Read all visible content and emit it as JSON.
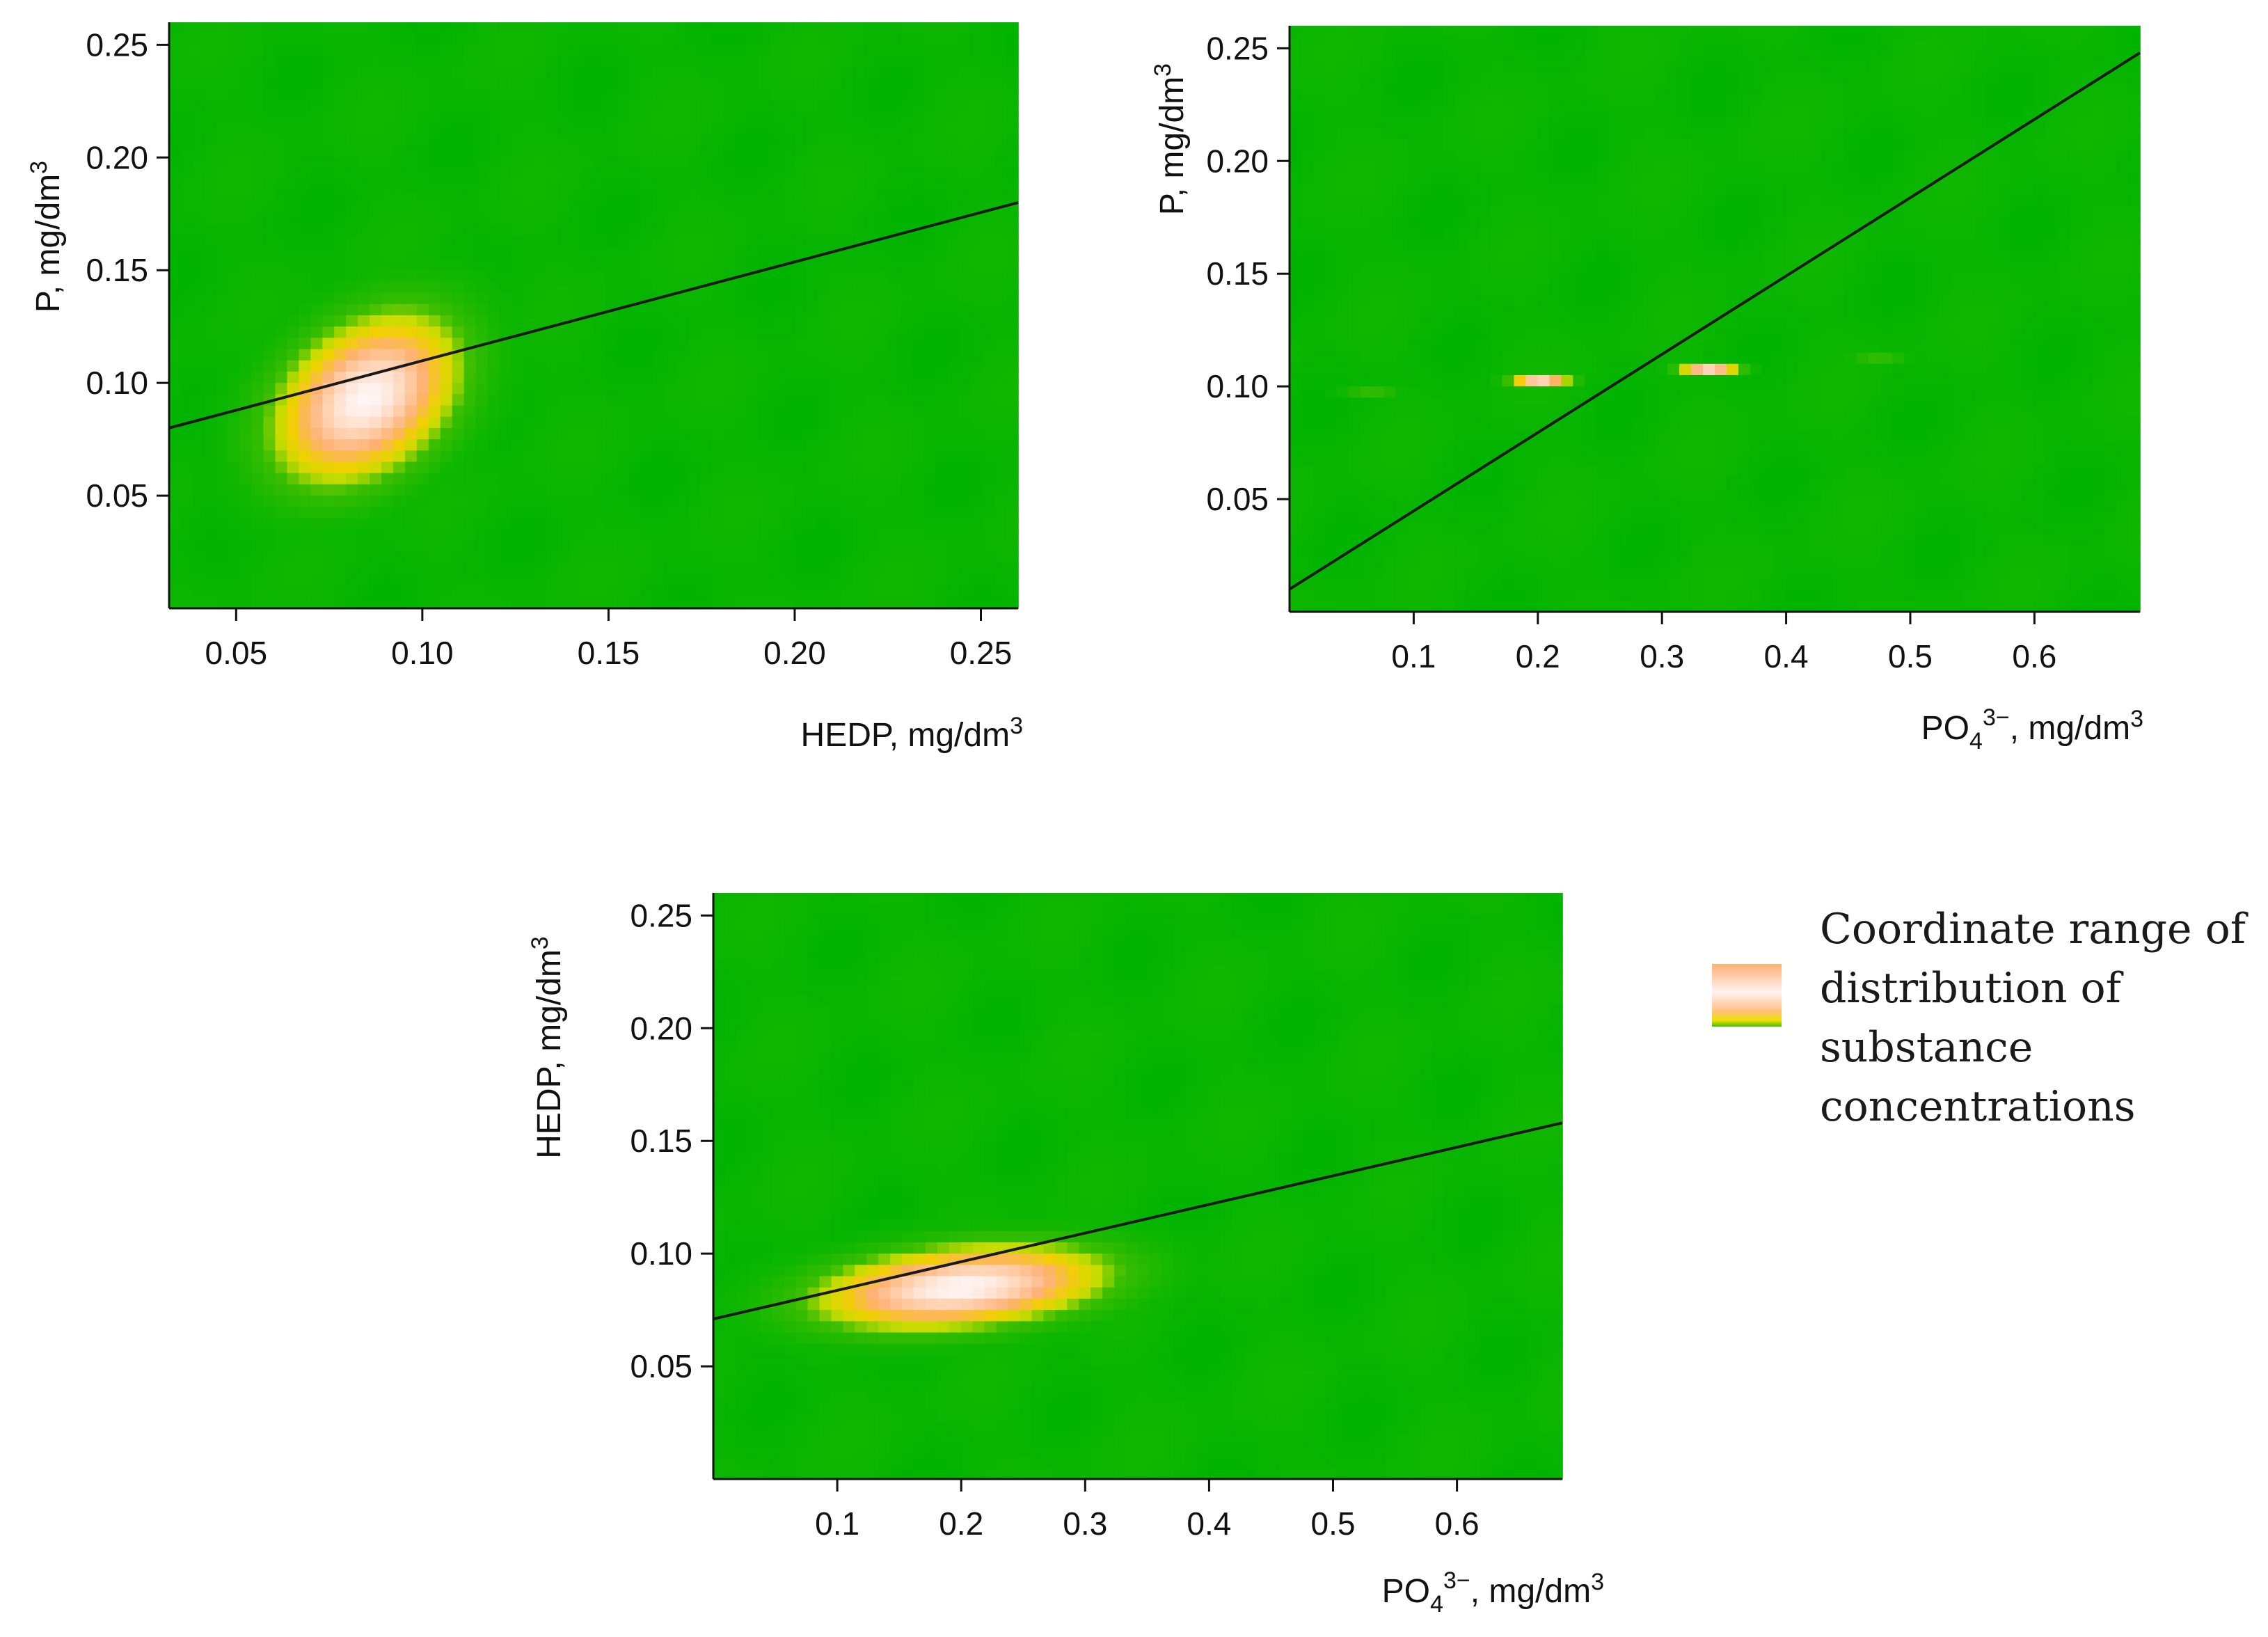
{
  "chart_data": [
    {
      "type": "heatmap",
      "id": "top-left",
      "title": "",
      "xlabel": "HEDP, mg/dm",
      "xlabel_sup": "3",
      "ylabel": "P, mg/dm",
      "ylabel_sup": "3",
      "xlim": [
        0.032,
        0.26
      ],
      "ylim": [
        0.0,
        0.26
      ],
      "xticks": [
        0.05,
        0.1,
        0.15,
        0.2,
        0.25
      ],
      "xtick_labels": [
        "0.05",
        "0.10",
        "0.15",
        "0.20",
        "0.25"
      ],
      "yticks": [
        0.05,
        0.1,
        0.15,
        0.2,
        0.25
      ],
      "ytick_labels": [
        "0.05",
        "0.10",
        "0.15",
        "0.20",
        "0.25"
      ],
      "grid": false,
      "density_center": [
        0.085,
        0.093
      ],
      "density_spread": [
        0.016,
        0.024
      ],
      "density_corr": 0.35,
      "regression_line": {
        "x": [
          0.032,
          0.26
        ],
        "y": [
          0.08,
          0.18
        ]
      }
    },
    {
      "type": "heatmap",
      "id": "top-right",
      "title": "",
      "xlabel": "PO",
      "xlabel_sub": "4",
      "xlabel_sup": "3−",
      "xlabel_unit": ", mg/dm",
      "xlabel_unit_sup": "3",
      "ylabel": "P, mg/dm",
      "ylabel_sup": "3",
      "xlim": [
        0.0,
        0.685
      ],
      "ylim": [
        0.0,
        0.26
      ],
      "xticks": [
        0.1,
        0.2,
        0.3,
        0.4,
        0.5,
        0.6
      ],
      "xtick_labels": [
        "0.1",
        "0.2",
        "0.3",
        "0.4",
        "0.5",
        "0.6"
      ],
      "yticks": [
        0.05,
        0.1,
        0.15,
        0.2,
        0.25
      ],
      "ytick_labels": [
        "0.05",
        "0.10",
        "0.15",
        "0.20",
        "0.25"
      ],
      "grid": false,
      "density_center": [
        0.27,
        0.105
      ],
      "density_spread": [
        0.11,
        0.004
      ],
      "density_corr": 0.99,
      "regression_line": {
        "x": [
          0.0,
          0.685
        ],
        "y": [
          0.01,
          0.248
        ]
      }
    },
    {
      "type": "heatmap",
      "id": "bottom",
      "title": "",
      "xlabel": "PO",
      "xlabel_sub": "4",
      "xlabel_sup": "3−",
      "xlabel_unit": ", mg/dm",
      "xlabel_unit_sup": "3",
      "ylabel": "HEDP, mg/dm",
      "ylabel_sup": "3",
      "xlim": [
        0.0,
        0.685
      ],
      "ylim": [
        0.0,
        0.26
      ],
      "xticks": [
        0.1,
        0.2,
        0.3,
        0.4,
        0.5,
        0.6
      ],
      "xtick_labels": [
        "0.1",
        "0.2",
        "0.3",
        "0.4",
        "0.5",
        "0.6"
      ],
      "yticks": [
        0.05,
        0.1,
        0.15,
        0.2,
        0.25
      ],
      "ytick_labels": [
        "0.05",
        "0.10",
        "0.15",
        "0.20",
        "0.25"
      ],
      "grid": false,
      "density_center": [
        0.2,
        0.085
      ],
      "density_spread": [
        0.075,
        0.012
      ],
      "density_corr": 0.3,
      "regression_line": {
        "x": [
          0.0,
          0.685
        ],
        "y": [
          0.071,
          0.158
        ]
      }
    }
  ],
  "legend": {
    "placement": "right of bottom chart",
    "lines": [
      "Coordinate range of",
      "distribution of",
      "substance",
      "concentrations"
    ]
  },
  "colors": {
    "background": "#00b400",
    "medium": "#f0d000",
    "high": "#ffb070",
    "peak": "#fff5f5",
    "line": "#1a1a1a"
  }
}
